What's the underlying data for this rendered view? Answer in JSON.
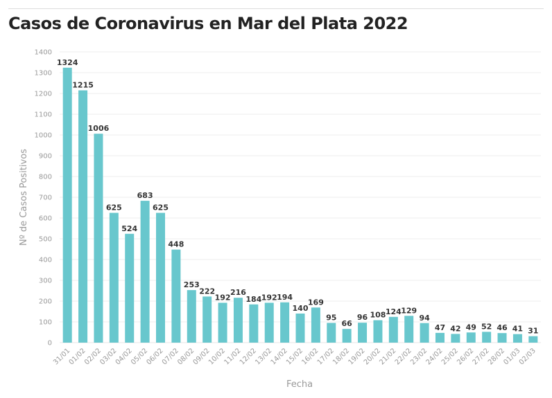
{
  "chart_data": {
    "type": "bar",
    "title": "Casos de Coronavirus en Mar del Plata 2022",
    "xlabel": "Fecha",
    "ylabel": "Nº de Casos Positivos",
    "ylim": [
      0,
      1400
    ],
    "yticks": [
      0,
      100,
      200,
      300,
      400,
      500,
      600,
      700,
      800,
      900,
      1000,
      1100,
      1200,
      1300,
      1400
    ],
    "grid": true,
    "bar_color": "#68c7cd",
    "categories": [
      "31/01",
      "01/02",
      "02/02",
      "03/02",
      "04/02",
      "05/02",
      "06/02",
      "07/02",
      "08/02",
      "09/02",
      "10/02",
      "11/02",
      "12/02",
      "13/02",
      "14/02",
      "15/02",
      "16/02",
      "17/02",
      "18/02",
      "19/02",
      "20/02",
      "21/02",
      "22/02",
      "23/02",
      "24/02",
      "25/02",
      "26/02",
      "27/02",
      "28/02",
      "01/03",
      "02/03"
    ],
    "values": [
      1324,
      1215,
      1006,
      625,
      524,
      683,
      625,
      448,
      253,
      222,
      192,
      216,
      184,
      192,
      194,
      140,
      169,
      95,
      66,
      96,
      108,
      124,
      129,
      94,
      47,
      42,
      49,
      52,
      46,
      41,
      31
    ]
  }
}
